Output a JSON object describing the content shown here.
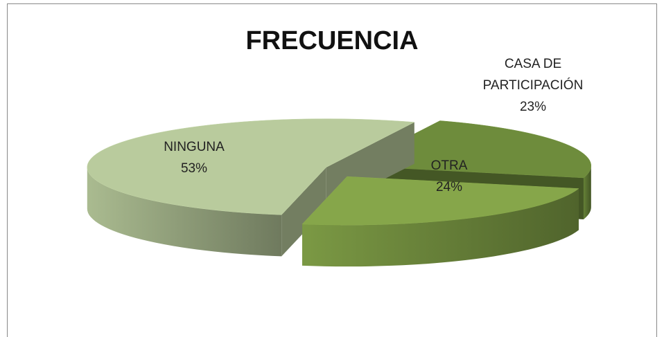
{
  "chart_data": {
    "type": "pie",
    "title": "FRECUENCIA",
    "categories": [
      "NINGUNA",
      "CASA DE PARTICIPACIÓN",
      "OTRA"
    ],
    "values": [
      53,
      23,
      24
    ],
    "value_labels": [
      "53%",
      "23%",
      "24%"
    ],
    "colors": [
      "#b9cb9d",
      "#6e8c3c",
      "#86a64a"
    ]
  }
}
